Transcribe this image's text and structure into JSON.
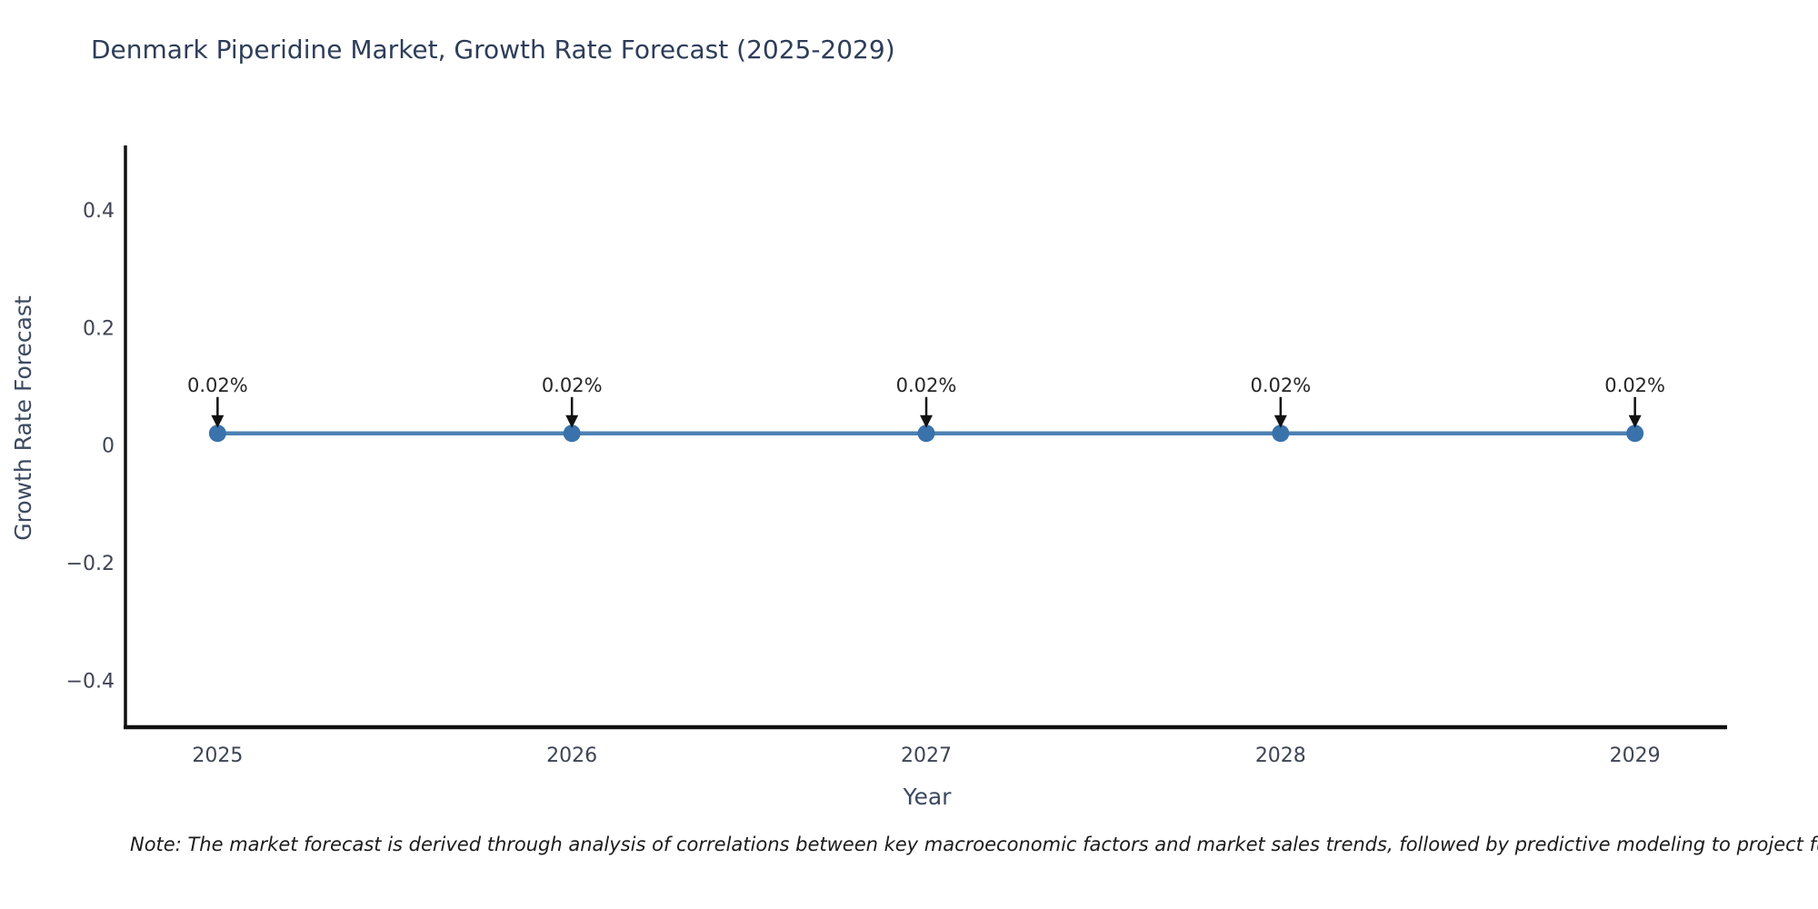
{
  "chart_data": {
    "type": "line",
    "title": "Denmark Piperidine Market, Growth Rate Forecast (2025-2029)",
    "xlabel": "Year",
    "ylabel": "Growth Rate Forecast",
    "x": [
      2025,
      2026,
      2027,
      2028,
      2029
    ],
    "series": [
      {
        "name": "Growth Rate Forecast",
        "values": [
          0.02,
          0.02,
          0.02,
          0.02,
          0.02
        ]
      }
    ],
    "point_labels": [
      "0.02%",
      "0.02%",
      "0.02%",
      "0.02%",
      "0.02%"
    ],
    "xlim": [
      2024.74,
      2029.26
    ],
    "ylim": [
      -0.48,
      0.51
    ],
    "yticks": [
      {
        "value": 0.4,
        "label": "0.4"
      },
      {
        "value": 0.2,
        "label": "0.2"
      },
      {
        "value": 0,
        "label": "0"
      },
      {
        "value": -0.2,
        "label": "−0.2"
      },
      {
        "value": -0.4,
        "label": "−0.4"
      }
    ],
    "xticks": [
      {
        "value": 2025,
        "label": "2025"
      },
      {
        "value": 2026,
        "label": "2026"
      },
      {
        "value": 2027,
        "label": "2027"
      },
      {
        "value": 2028,
        "label": "2028"
      },
      {
        "value": 2029,
        "label": "2029"
      }
    ],
    "grid": false,
    "legend": "none",
    "colors": {
      "line": "#4d81b3",
      "marker": "#3a72ab",
      "axis": "#111111",
      "annotation": "#111111"
    }
  },
  "note": {
    "text": "Note: The market forecast is derived through analysis of correlations between key macroeconomic factors and market sales trends, followed by predictive modeling to project future sa"
  }
}
